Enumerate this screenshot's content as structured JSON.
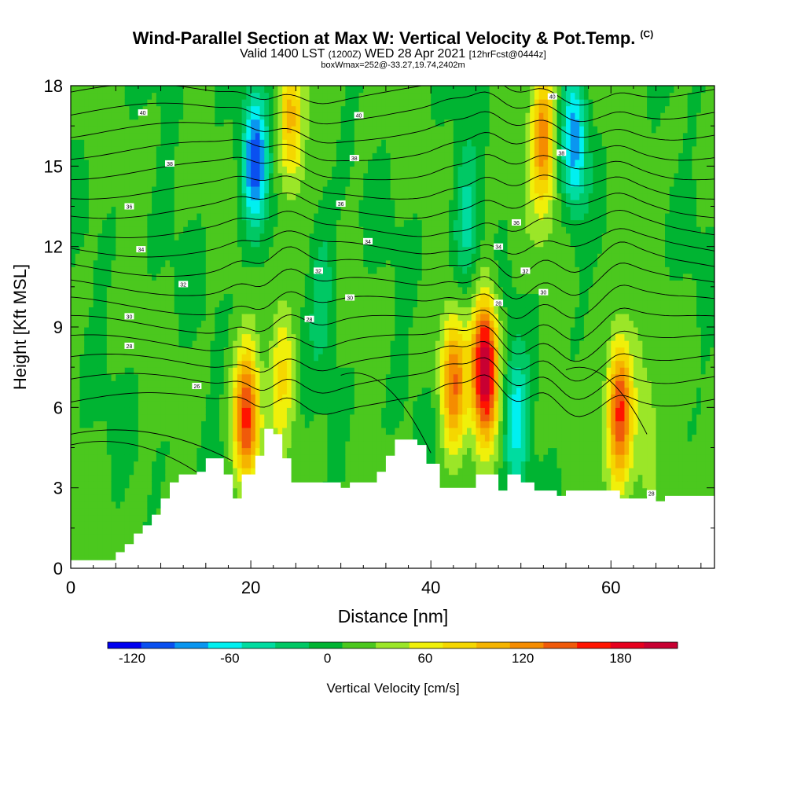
{
  "title": {
    "main": "Wind-Parallel Section at Max W: Vertical Velocity & Pot.Temp.",
    "main_tag": "(C)",
    "valid_prefix": "Valid 1400 LST",
    "valid_z": "(1200Z)",
    "valid_date": "WED 28 Apr 2021",
    "forecast_tag": "[12hrFcst@0444z]",
    "subline": "boxWmax=252@-33.27,19.74,2402m"
  },
  "chart_data": {
    "type": "heatmap",
    "title": "Wind-Parallel Section at Max W: Vertical Velocity & Pot.Temp.",
    "xlabel": "Distance [nm]",
    "ylabel": "Height [Kft MSL]",
    "xlim": [
      0,
      71.5
    ],
    "ylim": [
      0,
      18
    ],
    "xticks": [
      0,
      20,
      40,
      60
    ],
    "yticks": [
      0,
      3,
      6,
      9,
      12,
      15,
      18
    ],
    "colorbar": {
      "label": "Vertical Velocity [cm/s]",
      "ticks": [
        -120,
        -60,
        0,
        60,
        120,
        180
      ],
      "range": [
        -135,
        215
      ],
      "step": 20,
      "colors": [
        "#0000f0",
        "#0a50f0",
        "#0a96f0",
        "#00f0f0",
        "#00dca0",
        "#00c864",
        "#00b432",
        "#4bc81e",
        "#9be628",
        "#f0f00a",
        "#f5d700",
        "#f5b400",
        "#f58c00",
        "#f05a0a",
        "#ff1400",
        "#e6001e",
        "#c80032"
      ]
    },
    "updrafts": [
      {
        "x": 19.5,
        "z": 5.5,
        "w": 140
      },
      {
        "x": 23.5,
        "z": 7.5,
        "w": 60
      },
      {
        "x": 24.5,
        "z": 16.5,
        "w": 80
      },
      {
        "x": 42.5,
        "z": 6.8,
        "w": 110
      },
      {
        "x": 46.0,
        "z": 7.5,
        "w": 200
      },
      {
        "x": 52.5,
        "z": 16.0,
        "w": 110
      },
      {
        "x": 61.0,
        "z": 6.0,
        "w": 150
      },
      {
        "x": 64.0,
        "z": 5.0,
        "w": 40
      }
    ],
    "downdrafts": [
      {
        "x": 20.5,
        "z": 15.0,
        "w": -110
      },
      {
        "x": 28.0,
        "z": 10.5,
        "w": -40
      },
      {
        "x": 49.5,
        "z": 5.5,
        "w": -70
      },
      {
        "x": 56.0,
        "z": 16.0,
        "w": -90
      },
      {
        "x": 44.0,
        "z": 13.0,
        "w": -50
      }
    ],
    "theta_contour_labels": [
      {
        "x": 8,
        "z": 17.0,
        "text": "40"
      },
      {
        "x": 11,
        "z": 15.1,
        "text": "38"
      },
      {
        "x": 6.5,
        "z": 13.5,
        "text": "36"
      },
      {
        "x": 7.8,
        "z": 11.9,
        "text": "34"
      },
      {
        "x": 12.5,
        "z": 10.6,
        "text": "32"
      },
      {
        "x": 6.5,
        "z": 9.4,
        "text": "30"
      },
      {
        "x": 6.5,
        "z": 8.3,
        "text": "28"
      },
      {
        "x": 14,
        "z": 6.8,
        "text": "26"
      },
      {
        "x": 32,
        "z": 16.9,
        "text": "40"
      },
      {
        "x": 31.5,
        "z": 15.3,
        "text": "38"
      },
      {
        "x": 30,
        "z": 13.6,
        "text": "36"
      },
      {
        "x": 33,
        "z": 12.2,
        "text": "34"
      },
      {
        "x": 27.5,
        "z": 11.1,
        "text": "32"
      },
      {
        "x": 31,
        "z": 10.1,
        "text": "30"
      },
      {
        "x": 26.5,
        "z": 9.3,
        "text": "28"
      },
      {
        "x": 53.5,
        "z": 17.6,
        "text": "40"
      },
      {
        "x": 54.5,
        "z": 15.5,
        "text": "38"
      },
      {
        "x": 49.5,
        "z": 12.9,
        "text": "36"
      },
      {
        "x": 47.5,
        "z": 12.0,
        "text": "34"
      },
      {
        "x": 50.5,
        "z": 11.1,
        "text": "32"
      },
      {
        "x": 52.5,
        "z": 10.3,
        "text": "30"
      },
      {
        "x": 47.5,
        "z": 9.9,
        "text": "28"
      },
      {
        "x": 64.5,
        "z": 2.8,
        "text": "28"
      }
    ],
    "theta_levels": [
      26,
      27,
      28,
      29,
      30,
      31,
      32,
      33,
      34,
      35,
      36,
      37,
      38,
      39,
      40,
      41,
      42
    ],
    "terrain": [
      [
        0,
        0.3
      ],
      [
        4.5,
        0.3
      ],
      [
        5,
        0.6
      ],
      [
        6,
        0.9
      ],
      [
        7,
        1.3
      ],
      [
        8,
        1.6
      ],
      [
        9,
        2.0
      ],
      [
        10,
        2.6
      ],
      [
        11,
        3.2
      ],
      [
        12,
        3.5
      ],
      [
        14,
        3.6
      ],
      [
        15,
        4.1
      ],
      [
        17,
        3.5
      ],
      [
        18,
        2.6
      ],
      [
        19,
        3.5
      ],
      [
        20.5,
        4.2
      ],
      [
        21.5,
        5.2
      ],
      [
        22.5,
        5.0
      ],
      [
        23.5,
        4.1
      ],
      [
        24.5,
        3.2
      ],
      [
        29,
        3.2
      ],
      [
        30,
        3.0
      ],
      [
        31,
        3.2
      ],
      [
        34,
        3.6
      ],
      [
        35,
        4.2
      ],
      [
        36,
        4.8
      ],
      [
        38.5,
        4.6
      ],
      [
        39.5,
        3.9
      ],
      [
        41,
        3.0
      ],
      [
        43.5,
        3.0
      ],
      [
        45,
        3.5
      ],
      [
        46.5,
        3.5
      ],
      [
        47.5,
        2.9
      ],
      [
        48.5,
        3.5
      ],
      [
        50,
        3.2
      ],
      [
        51.5,
        2.9
      ],
      [
        53,
        2.9
      ],
      [
        54,
        2.7
      ],
      [
        55,
        2.9
      ],
      [
        60,
        2.9
      ],
      [
        61,
        2.6
      ],
      [
        64,
        2.8
      ],
      [
        65,
        2.5
      ],
      [
        66,
        2.7
      ],
      [
        71.5,
        2.6
      ]
    ]
  },
  "axis_text": {
    "x_title": "Distance [nm]",
    "y_title": "Height [Kft MSL]",
    "colorbar_title": "Vertical Velocity [cm/s]"
  }
}
